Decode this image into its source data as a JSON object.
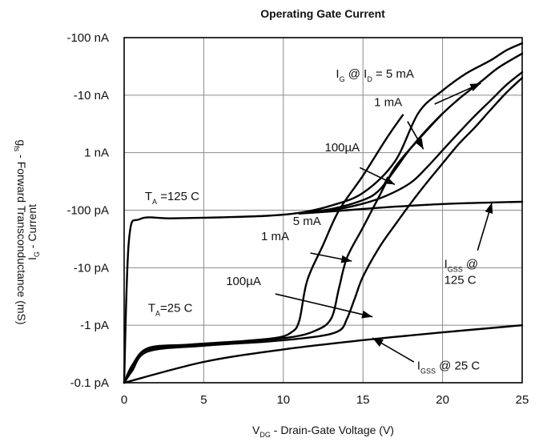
{
  "chart_data": {
    "type": "line",
    "title": "Operating Gate Current",
    "xlabel": "V_DG - Drain-Gate Voltage (V)",
    "xlabel_parts": {
      "main": "V",
      "sub": "DG",
      "rest": " - Drain-Gate Voltage (V)"
    },
    "ylabel_primary": "g_fs - Forward Transconductance (mS)",
    "ylabel_primary_parts": {
      "main": "g",
      "sub": "fs",
      "rest": " - Forward Transconductance (mS)"
    },
    "ylabel_secondary": "I_G - Current",
    "ylabel_secondary_parts": {
      "main": "I",
      "sub": "G",
      "rest": " - Current"
    },
    "xlim": [
      0,
      25
    ],
    "x_ticks": [
      0,
      5,
      10,
      15,
      20,
      25
    ],
    "x_tick_labels": [
      "0",
      "5",
      "10",
      "15",
      "20",
      "25"
    ],
    "y_scale": "log",
    "y_unit": "A",
    "ylim": [
      1e-13,
      1e-07
    ],
    "y_ticks": [
      1e-13,
      1e-12,
      1e-11,
      1e-10,
      1e-09,
      1e-08,
      1e-07
    ],
    "y_tick_labels": [
      "-0.1 pA",
      "-1 pA",
      "-10 pA",
      "-100 pA",
      "1 nA",
      "-10 nA",
      "-100 nA"
    ],
    "grid": true,
    "series": [
      {
        "name": "I_G @ I_D = 5 mA, T_A = 125 C",
        "x": [
          0,
          0.3,
          1,
          3,
          6,
          9,
          11,
          13,
          15,
          17,
          18.5,
          20,
          21.5,
          23,
          24,
          25
        ],
        "y": [
          1e-13,
          3e-11,
          7e-11,
          7.2e-11,
          7.5e-11,
          8e-11,
          9e-11,
          1.2e-10,
          2e-10,
          7e-10,
          5e-09,
          1.2e-08,
          2.4e-08,
          4e-08,
          6e-08,
          8e-08
        ]
      },
      {
        "name": "1 mA, T_A = 125 C",
        "x": [
          11,
          13,
          15,
          16,
          17,
          18,
          19.5,
          21,
          22.5,
          23.5,
          25
        ],
        "y": [
          9e-11,
          1.05e-10,
          1.5e-10,
          2.2e-10,
          5e-10,
          1.2e-09,
          3.5e-09,
          8.5e-09,
          1.8e-08,
          3e-08,
          5.3e-08
        ]
      },
      {
        "name": "100µA, T_A = 125 C",
        "x": [
          11,
          13,
          15,
          16.5,
          18,
          19,
          20,
          21,
          22,
          23,
          24,
          25
        ],
        "y": [
          9e-11,
          1e-10,
          1.3e-10,
          1.8e-10,
          3e-10,
          5.5e-10,
          1.1e-09,
          2.2e-09,
          4.3e-09,
          8e-09,
          1.5e-08,
          2.5e-08
        ]
      },
      {
        "name": "I_GSS @ 125 C",
        "x": [
          11,
          14,
          17,
          20,
          23,
          25
        ],
        "y": [
          8.7e-11,
          1e-10,
          1.15e-10,
          1.28e-10,
          1.36e-10,
          1.4e-10
        ]
      },
      {
        "name": "5 mA, T_A = 25 C",
        "x": [
          0,
          0.5,
          1.5,
          4,
          7,
          9.5,
          10.5,
          11,
          11.5,
          12.5,
          13.5,
          15,
          16.5,
          17.5
        ],
        "y": [
          1e-13,
          2e-13,
          4e-13,
          4.6e-13,
          5.2e-13,
          6e-13,
          7.5e-13,
          1.2e-12,
          6e-12,
          2.5e-11,
          1e-10,
          4e-10,
          1.8e-09,
          4.5e-09
        ]
      },
      {
        "name": "1 mA, T_A = 25 C",
        "x": [
          0,
          0.5,
          1.5,
          5,
          8,
          10.5,
          12,
          13,
          13.5,
          14,
          15,
          16,
          17,
          18.5,
          20
        ],
        "y": [
          1e-13,
          1.8e-13,
          3.8e-13,
          4.6e-13,
          5.3e-13,
          6.2e-13,
          8e-13,
          1.3e-12,
          4.5e-12,
          1.5e-11,
          5e-11,
          1.7e-10,
          5.5e-10,
          1.7e-09,
          4.8e-09
        ]
      },
      {
        "name": "100µA, T_A = 25 C",
        "x": [
          0,
          0.5,
          1.5,
          5,
          9,
          12,
          13.5,
          14,
          14.5,
          15,
          16,
          17,
          18.5,
          20,
          21,
          22,
          23,
          24,
          25
        ],
        "y": [
          1e-13,
          1.6e-13,
          3.5e-13,
          4.4e-13,
          5.2e-13,
          6.3e-13,
          8e-13,
          1.3e-12,
          3e-12,
          7e-12,
          2.2e-11,
          5.5e-11,
          2e-10,
          6.5e-10,
          1.4e-09,
          2.7e-09,
          5.5e-09,
          1.1e-08,
          2e-08
        ]
      },
      {
        "name": "I_GSS @ 25 C",
        "x": [
          0,
          5,
          10,
          15,
          20,
          25
        ],
        "y": [
          1e-13,
          2.3e-13,
          3.8e-13,
          5.5e-13,
          7.5e-13,
          1e-12
        ]
      }
    ],
    "annotations": [
      {
        "id": "ann-5ma-125",
        "parts": [
          [
            "I",
            ""
          ],
          [
            "G",
            "sub"
          ],
          [
            " @ I",
            ""
          ],
          [
            "D",
            "sub"
          ],
          [
            " = 5 mA",
            ""
          ]
        ],
        "tx": 13.3,
        "ty": 2e-08,
        "ax": 19.5,
        "ay": 7e-09,
        "hx": 22.4,
        "hy": 1.6e-08
      },
      {
        "id": "ann-1ma-125",
        "parts": [
          [
            "1 mA",
            ""
          ]
        ],
        "tx": 15.7,
        "ty": 6.5e-09,
        "ax": 17.8,
        "ay": 3.5e-09,
        "hx": 18.8,
        "hy": 1.15e-09
      },
      {
        "id": "ann-100ua-125",
        "parts": [
          [
            "100µA",
            ""
          ]
        ],
        "tx": 12.6,
        "ty": 1.05e-09,
        "ax": 14.8,
        "ay": 5.5e-10,
        "hx": 17.0,
        "hy": 2.8e-10
      },
      {
        "id": "ann-ta-125",
        "parts": [
          [
            "T",
            ""
          ],
          [
            "A",
            "sub"
          ],
          [
            " =125 C",
            ""
          ]
        ],
        "tx": 1.3,
        "ty": 1.5e-10,
        "ax": null,
        "ay": null,
        "hx": null,
        "hy": null
      },
      {
        "id": "ann-igss-125",
        "parts": [
          [
            "I",
            ""
          ],
          [
            "GSS",
            "sub"
          ],
          [
            " @",
            ""
          ]
        ],
        "parts2": [
          [
            "125 C",
            ""
          ]
        ],
        "tx": 20.1,
        "ty": 1e-11,
        "ax": 22.2,
        "ay": 2e-11,
        "hx": 23.1,
        "hy": 1.35e-10
      },
      {
        "id": "ann-5ma-25",
        "parts": [
          [
            "5 mA",
            ""
          ]
        ],
        "tx": 10.6,
        "ty": 5.5e-11,
        "ax": null,
        "ay": null,
        "hx": null,
        "hy": null
      },
      {
        "id": "ann-1ma-25",
        "parts": [
          [
            "1 mA",
            ""
          ]
        ],
        "tx": 8.6,
        "ty": 3e-11,
        "ax": 11.7,
        "ay": 1.8e-11,
        "hx": 14.3,
        "hy": 1.3e-11
      },
      {
        "id": "ann-100ua-25",
        "parts": [
          [
            "100µA",
            ""
          ]
        ],
        "tx": 6.4,
        "ty": 5e-12,
        "ax": 9.5,
        "ay": 3.5e-12,
        "hx": 15.6,
        "hy": 1.4e-12
      },
      {
        "id": "ann-ta-25",
        "parts": [
          [
            "T",
            ""
          ],
          [
            "A",
            "sub"
          ],
          [
            "=25 C",
            ""
          ]
        ],
        "tx": 1.5,
        "ty": 1.7e-12,
        "ax": null,
        "ay": null,
        "hx": null,
        "hy": null
      },
      {
        "id": "ann-igss-25",
        "parts": [
          [
            "I",
            ""
          ],
          [
            "GSS",
            "sub"
          ],
          [
            " @ 25 C",
            ""
          ]
        ],
        "tx": 18.4,
        "ty": 1.7e-13,
        "ax": 18.2,
        "ay": 2.3e-13,
        "hx": 15.6,
        "hy": 6e-13
      }
    ]
  }
}
